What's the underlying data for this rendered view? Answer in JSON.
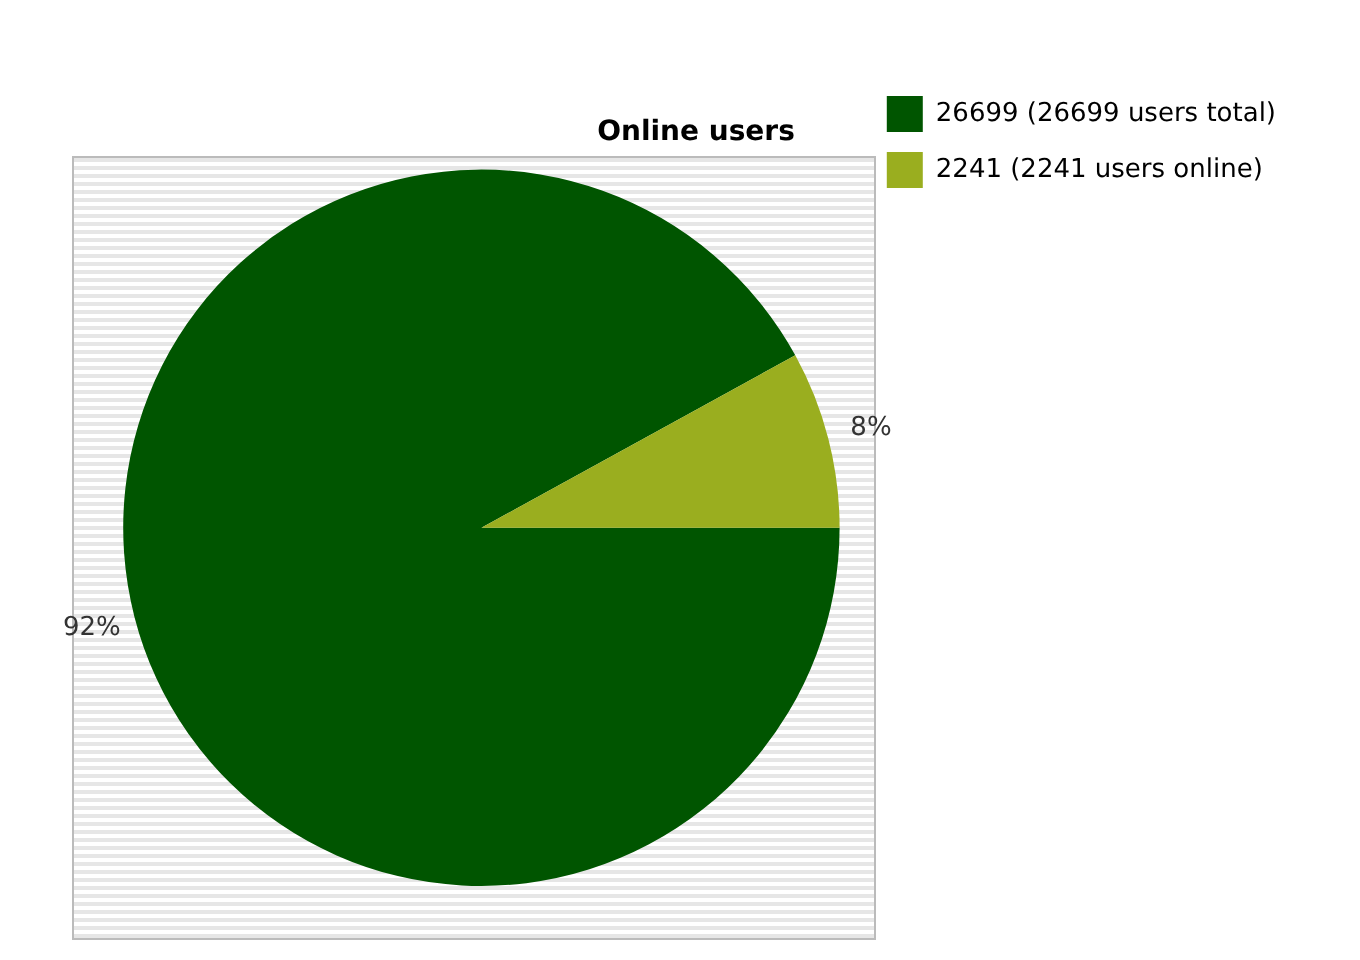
{
  "chart_data": {
    "type": "pie",
    "title": "Online users",
    "categories": [
      "26699 (26699 users total)",
      "2241 (2241 users online)"
    ],
    "values": [
      92,
      8
    ],
    "colors": [
      "#005500",
      "#9aae1f"
    ],
    "value_labels": [
      "92%",
      "8%"
    ],
    "legend": "top right"
  }
}
